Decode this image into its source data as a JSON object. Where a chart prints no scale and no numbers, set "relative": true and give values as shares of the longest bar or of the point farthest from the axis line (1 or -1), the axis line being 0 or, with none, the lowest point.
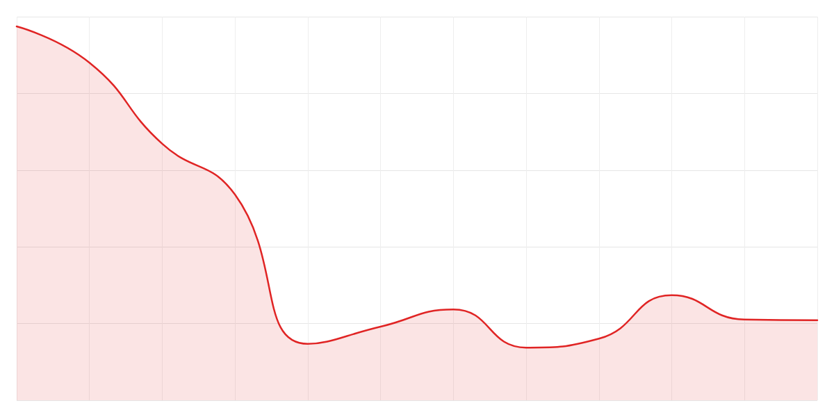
{
  "chart_data": {
    "type": "area",
    "relative": true,
    "categories": [
      null,
      null,
      null,
      null,
      null,
      null,
      null,
      null,
      null,
      null,
      null,
      null
    ],
    "series": [
      {
        "color": "#e02424",
        "values": [
          1,
          0.903,
          0.686,
          0.55,
          0.151,
          0.197,
          0.243,
          0.141,
          0.165,
          0.281,
          0.216,
          0.214
        ]
      }
    ],
    "grid": true,
    "marker": "none",
    "line_style": "solid"
  }
}
